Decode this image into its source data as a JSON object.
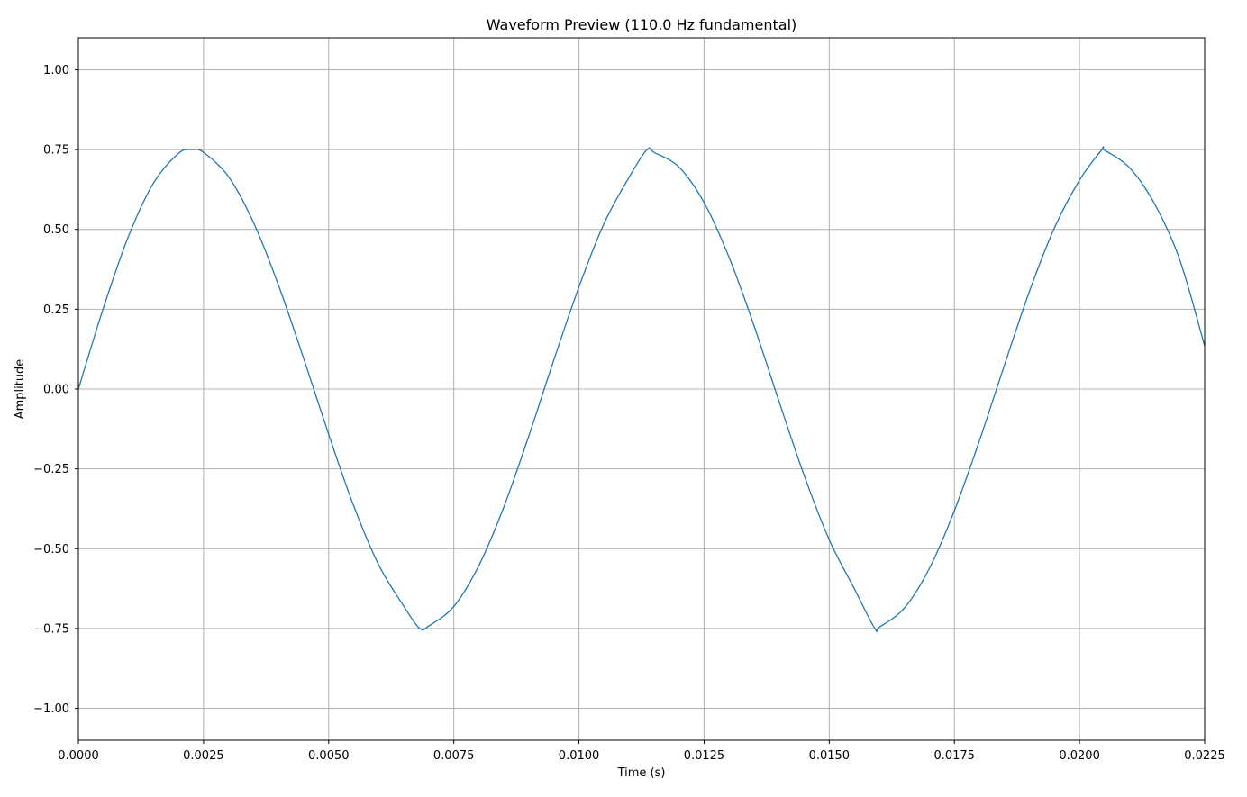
{
  "chart_data": {
    "type": "line",
    "title": "Waveform Preview (110.0 Hz fundamental)",
    "xlabel": "Time (s)",
    "ylabel": "Amplitude",
    "xlim": [
      0.0,
      0.0225
    ],
    "ylim": [
      -1.1,
      1.1
    ],
    "grid": true,
    "x_ticks": [
      0.0,
      0.0025,
      0.005,
      0.0075,
      0.01,
      0.0125,
      0.015,
      0.0175,
      0.02,
      0.0225
    ],
    "x_tick_labels": [
      "0.0000",
      "0.0025",
      "0.0050",
      "0.0075",
      "0.0100",
      "0.0125",
      "0.0150",
      "0.0175",
      "0.0200",
      "0.0225"
    ],
    "y_ticks": [
      -1.0,
      -0.75,
      -0.5,
      -0.25,
      0.0,
      0.25,
      0.5,
      0.75,
      1.0
    ],
    "y_tick_labels": [
      "−1.00",
      "−0.75",
      "−0.50",
      "−0.25",
      "0.00",
      "0.25",
      "0.50",
      "0.75",
      "1.00"
    ],
    "series": [
      {
        "color": "#1f77b4",
        "x": [
          0.0,
          0.0005,
          0.001,
          0.0015,
          0.002,
          0.00227,
          0.0025,
          0.003,
          0.0035,
          0.004,
          0.0045,
          0.005,
          0.0055,
          0.006,
          0.0065,
          0.00682,
          0.007,
          0.0075,
          0.008,
          0.0085,
          0.009,
          0.0095,
          0.01,
          0.0105,
          0.011,
          0.01136,
          0.0115,
          0.012,
          0.0125,
          0.013,
          0.0135,
          0.014,
          0.0145,
          0.015,
          0.0155,
          0.01591,
          0.016,
          0.0165,
          0.017,
          0.0175,
          0.018,
          0.0185,
          0.019,
          0.0195,
          0.02,
          0.02045,
          0.0205,
          0.021,
          0.0215,
          0.022,
          0.0225
        ],
        "y": [
          0.0,
          0.254,
          0.478,
          0.645,
          0.738,
          0.75,
          0.741,
          0.665,
          0.521,
          0.324,
          0.096,
          -0.142,
          -0.366,
          -0.551,
          -0.68,
          -0.75,
          -0.742,
          -0.681,
          -0.553,
          -0.369,
          -0.146,
          0.092,
          0.32,
          0.518,
          0.663,
          0.75,
          0.741,
          0.695,
          0.584,
          0.412,
          0.197,
          -0.04,
          -0.271,
          -0.472,
          -0.625,
          -0.75,
          -0.746,
          -0.686,
          -0.562,
          -0.381,
          -0.162,
          0.075,
          0.306,
          0.505,
          0.654,
          0.75,
          0.748,
          0.693,
          0.58,
          0.406,
          0.135
        ]
      }
    ]
  }
}
